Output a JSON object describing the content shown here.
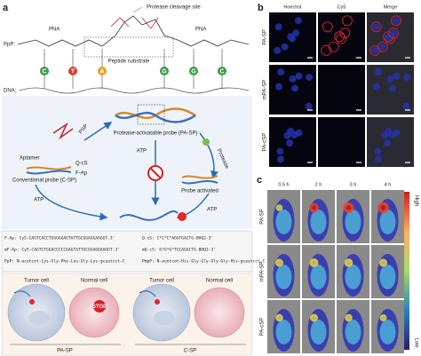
{
  "panel_a": {
    "label": "a",
    "cleavage_site": "Protease cleavage site",
    "pna_left": "PNA",
    "pna_right": "PNA",
    "ppp_label": "PpP:",
    "peptide_substrate": "Peptide substrate",
    "dna_label": "DNA:",
    "bases": [
      "C",
      "T",
      "A",
      "G",
      "G",
      "C"
    ],
    "psp": "PSP",
    "pa_sp": "Protease-activatable probe (PA-SP)",
    "protease": "Protease",
    "aptamer": "Aptamer",
    "c_sp": "Conventional probe (C-SP)",
    "q_cs": "Q-cS",
    "f_ap": "F-Ap",
    "atp_center": "ATP",
    "atp_left": "ATP",
    "atp_right": "ATP",
    "probe_activated": "Probe activated",
    "sequences": [
      "F-Ap: Cy5-CAGTCACCTGGGGGAGTATTGCGGAGGAAGGT-3'",
      "Q-cS: C*C*C*AGGTGACTG-BHQ2-3'",
      "mF-Ap: Cy5-CAGTCTGGACCCCCGAGTATTGCGGAGGAAGGT-3'",
      "mQ-cS: G*G*G*TCCAGACTG-BHQ2-3'",
      "PpP: N-acetcot-Lys-Gly-Phe-Leu-Gly-Lys-gcaatcct-C",
      "PmpP: N-acetcot-His-Gly-Gly-Gly-Gly-His-gcaatcct-C"
    ],
    "groups": [
      {
        "tumor": "Tumor cell",
        "normal": "Normal cell",
        "name": "PA-SP"
      },
      {
        "tumor": "Tumor cell",
        "normal": "Normal cell",
        "name": "C-SP"
      }
    ],
    "stop": "STOP"
  },
  "panel_b": {
    "label": "b",
    "columns": [
      "Hoechst",
      "Cy5",
      "Merge"
    ],
    "rows": [
      "PA-SP",
      "mPA-SP",
      "PA-cSP"
    ]
  },
  "panel_c": {
    "label": "c",
    "times": [
      "0.5 h",
      "2 h",
      "3 h",
      "4 h"
    ],
    "rows": [
      "PA-SP",
      "mPA-SP",
      "PA-cSP"
    ],
    "colorbar_high": "High",
    "colorbar_low": "Low"
  }
}
